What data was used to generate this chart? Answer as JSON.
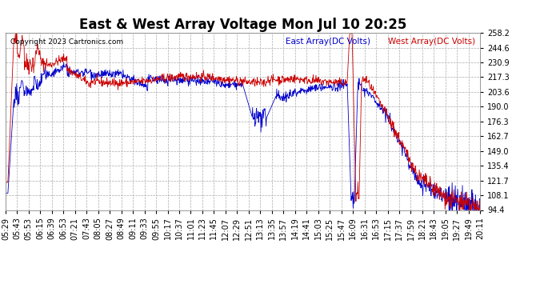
{
  "title": "East & West Array Voltage Mon Jul 10 20:25",
  "copyright": "Copyright 2023 Cartronics.com",
  "legend_east": "East Array(DC Volts)",
  "legend_west": "West Array(DC Volts)",
  "east_color": "#0000cc",
  "west_color": "#cc0000",
  "ymin": 94.4,
  "ymax": 258.2,
  "yticks": [
    94.4,
    108.1,
    121.7,
    135.4,
    149.0,
    162.7,
    176.3,
    190.0,
    203.6,
    217.3,
    230.9,
    244.6,
    258.2
  ],
  "xtick_labels": [
    "05:29",
    "05:43",
    "05:53",
    "06:15",
    "06:39",
    "06:53",
    "07:21",
    "07:43",
    "08:05",
    "08:27",
    "08:49",
    "09:11",
    "09:33",
    "09:55",
    "10:17",
    "10:37",
    "11:01",
    "11:23",
    "11:45",
    "12:07",
    "12:29",
    "12:51",
    "13:13",
    "13:35",
    "13:57",
    "14:19",
    "14:41",
    "15:03",
    "15:25",
    "15:47",
    "16:09",
    "16:31",
    "16:53",
    "17:15",
    "17:37",
    "17:59",
    "18:21",
    "18:43",
    "19:05",
    "19:27",
    "19:49",
    "20:11"
  ],
  "plot_bg": "#ffffff",
  "fig_bg": "#ffffff",
  "grid_color": "#aaaaaa",
  "title_fontsize": 12,
  "tick_fontsize": 7
}
